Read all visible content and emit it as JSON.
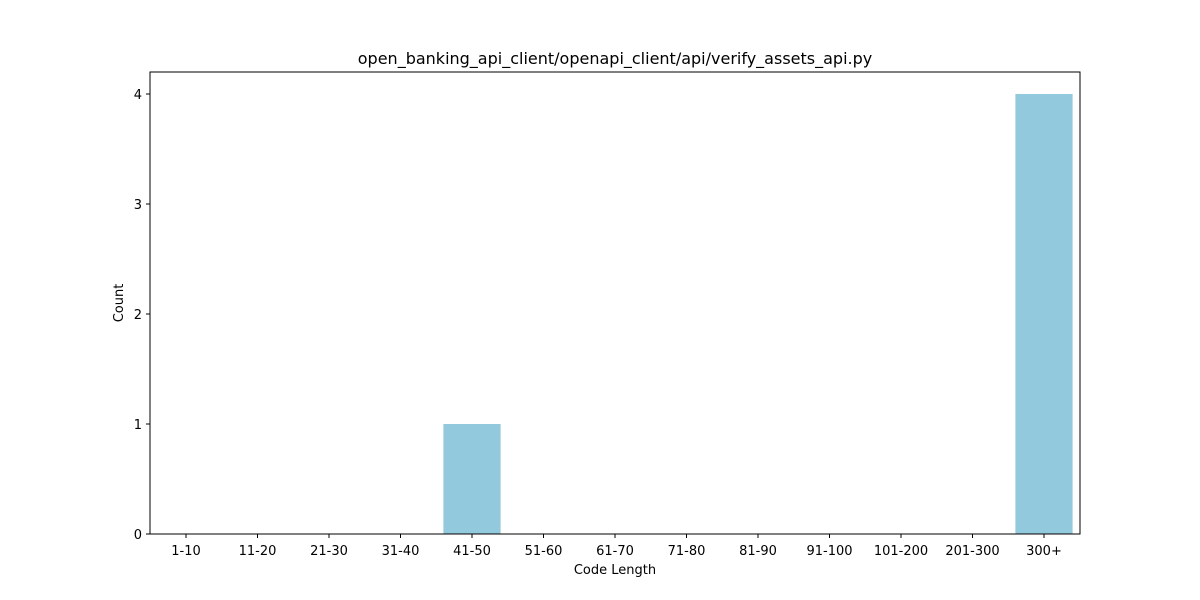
{
  "chart_data": {
    "type": "bar",
    "title": "open_banking_api_client/openapi_client/api/verify_assets_api.py",
    "xlabel": "Code Length",
    "ylabel": "Count",
    "categories": [
      "1-10",
      "11-20",
      "21-30",
      "31-40",
      "41-50",
      "51-60",
      "61-70",
      "71-80",
      "81-90",
      "91-100",
      "101-200",
      "201-300",
      "300+"
    ],
    "values": [
      0,
      0,
      0,
      0,
      1,
      0,
      0,
      0,
      0,
      0,
      0,
      0,
      4
    ],
    "yticks": [
      "0",
      "1",
      "2",
      "3",
      "4"
    ],
    "ylim": [
      0,
      4.2
    ],
    "bar_color": "#92c9dd",
    "grid": false,
    "legend": "none"
  }
}
